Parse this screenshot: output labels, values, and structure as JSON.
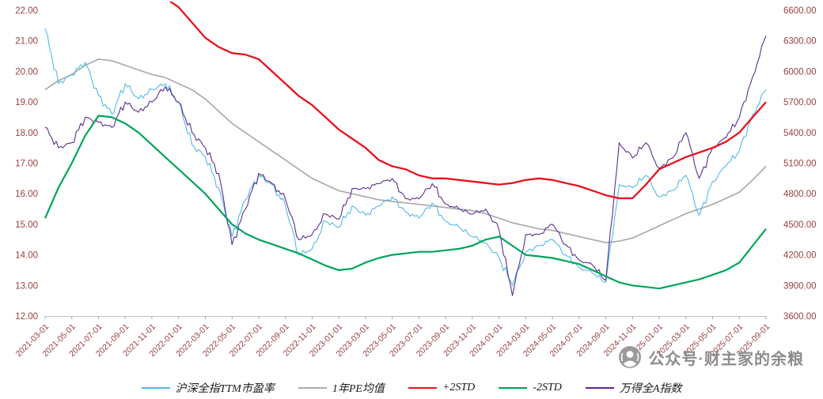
{
  "watermark": {
    "text": "公众号·财主家的余粮"
  },
  "colors": {
    "axis_text": "#9a4040",
    "axis_line": "#bfbfbf",
    "tick": "#a6a6a6"
  },
  "chart_data": {
    "type": "line",
    "title": "",
    "grid": false,
    "legend_position": "bottom",
    "x": [
      "2021-03",
      "2021-04",
      "2021-05",
      "2021-06",
      "2021-07",
      "2021-08",
      "2021-09",
      "2021-10",
      "2021-11",
      "2021-12",
      "2022-01",
      "2022-02",
      "2022-03",
      "2022-04",
      "2022-05",
      "2022-06",
      "2022-07",
      "2022-08",
      "2022-09",
      "2022-10",
      "2022-11",
      "2022-12",
      "2023-01",
      "2023-02",
      "2023-03",
      "2023-04",
      "2023-05",
      "2023-06",
      "2023-07",
      "2023-08",
      "2023-09",
      "2023-10",
      "2023-11",
      "2023-12",
      "2024-01",
      "2024-02",
      "2024-03",
      "2024-04",
      "2024-05",
      "2024-06",
      "2024-07",
      "2024-08",
      "2024-09",
      "2024-10",
      "2024-11",
      "2024-12",
      "2025-01",
      "2025-02",
      "2025-03",
      "2025-04",
      "2025-05",
      "2025-06",
      "2025-07",
      "2025-08",
      "2025-09"
    ],
    "x_tick_labels": [
      "2021-03-01",
      "2021-05-01",
      "2021-07-01",
      "2021-09-01",
      "2021-11-01",
      "2022-01-01",
      "2022-03-01",
      "2022-05-01",
      "2022-07-01",
      "2022-09-01",
      "2022-11-01",
      "2023-01-01",
      "2023-03-01",
      "2023-05-01",
      "2023-07-01",
      "2023-09-01",
      "2023-11-01",
      "2024-01-01",
      "2024-03-01",
      "2024-05-01",
      "2024-07-01",
      "2024-09-01",
      "2024-11-01",
      "2025-01-01",
      "2025-03-01",
      "2025-05-01",
      "2025-07-01",
      "2025-09-01"
    ],
    "left_axis": {
      "min": 12,
      "max": 22,
      "ticks": [
        "22.00",
        "21.00",
        "20.00",
        "19.00",
        "18.00",
        "17.00",
        "16.00",
        "15.00",
        "14.00",
        "13.00",
        "12.00"
      ]
    },
    "right_axis": {
      "min": 3600,
      "max": 6600,
      "ticks": [
        "6600.00",
        "6300.00",
        "6000.00",
        "5700.00",
        "5400.00",
        "5100.00",
        "4800.00",
        "4500.00",
        "4200.00",
        "3900.00",
        "3600.00"
      ]
    },
    "series": [
      {
        "name": "沪深全指TTM市盈率",
        "color": "#54B9E9",
        "axis": "left",
        "width": 1.1,
        "jitter": true,
        "values": [
          21.4,
          19.6,
          19.9,
          20.3,
          19.2,
          18.6,
          19.6,
          19.1,
          19.4,
          19.6,
          19.0,
          17.6,
          17.2,
          16.2,
          14.6,
          15.8,
          16.6,
          16.3,
          15.6,
          14.0,
          14.2,
          15.1,
          14.9,
          15.6,
          15.3,
          15.6,
          15.9,
          15.4,
          15.2,
          15.7,
          15.1,
          14.9,
          14.6,
          14.4,
          13.9,
          13.0,
          14.1,
          14.3,
          14.5,
          14.0,
          13.6,
          13.4,
          13.1,
          16.3,
          16.2,
          16.6,
          15.9,
          16.1,
          16.6,
          15.3,
          16.4,
          16.9,
          17.4,
          18.6,
          19.4
        ]
      },
      {
        "name": "1年PE均值",
        "color": "#ABABAB",
        "axis": "left",
        "width": 1.7,
        "jitter": false,
        "values": [
          19.4,
          19.7,
          19.9,
          20.2,
          20.4,
          20.35,
          20.2,
          20.05,
          19.9,
          19.8,
          19.6,
          19.4,
          19.1,
          18.7,
          18.3,
          18.0,
          17.7,
          17.4,
          17.1,
          16.8,
          16.5,
          16.3,
          16.1,
          16.0,
          15.9,
          15.8,
          15.75,
          15.7,
          15.65,
          15.6,
          15.55,
          15.5,
          15.45,
          15.35,
          15.2,
          15.05,
          14.95,
          14.85,
          14.8,
          14.7,
          14.6,
          14.5,
          14.4,
          14.45,
          14.55,
          14.75,
          14.95,
          15.15,
          15.35,
          15.5,
          15.65,
          15.85,
          16.05,
          16.45,
          16.9
        ]
      },
      {
        "name": "+2STD",
        "color": "#E8131D",
        "axis": "left",
        "width": 2.3,
        "jitter": false,
        "values": [
          23.8,
          23.8,
          23.7,
          23.6,
          23.4,
          23.2,
          23.0,
          22.8,
          22.6,
          22.4,
          22.1,
          21.6,
          21.1,
          20.8,
          20.6,
          20.55,
          20.4,
          20.0,
          19.6,
          19.2,
          18.9,
          18.5,
          18.1,
          17.8,
          17.5,
          17.1,
          16.9,
          16.8,
          16.6,
          16.5,
          16.5,
          16.45,
          16.4,
          16.35,
          16.3,
          16.35,
          16.45,
          16.5,
          16.45,
          16.35,
          16.25,
          16.1,
          15.95,
          15.85,
          15.85,
          16.3,
          16.8,
          17.0,
          17.2,
          17.35,
          17.5,
          17.7,
          18.0,
          18.5,
          19.0
        ]
      },
      {
        "name": "-2STD",
        "color": "#00A45A",
        "axis": "left",
        "width": 2.2,
        "jitter": false,
        "values": [
          15.2,
          16.2,
          17.0,
          17.9,
          18.55,
          18.5,
          18.3,
          18.0,
          17.6,
          17.2,
          16.8,
          16.4,
          16.0,
          15.5,
          15.0,
          14.7,
          14.5,
          14.35,
          14.2,
          14.05,
          13.85,
          13.65,
          13.5,
          13.55,
          13.75,
          13.9,
          14.0,
          14.05,
          14.1,
          14.1,
          14.15,
          14.2,
          14.3,
          14.5,
          14.6,
          14.3,
          14.0,
          13.95,
          13.9,
          13.8,
          13.7,
          13.5,
          13.3,
          13.1,
          13.0,
          12.95,
          12.9,
          13.0,
          13.1,
          13.2,
          13.35,
          13.5,
          13.75,
          14.3,
          14.85
        ]
      },
      {
        "name": "万得全A指数",
        "color": "#5B2E90",
        "axis": "right",
        "width": 1.1,
        "jitter": true,
        "values": [
          5450,
          5250,
          5300,
          5550,
          5500,
          5450,
          5700,
          5600,
          5700,
          5850,
          5700,
          5400,
          5250,
          5000,
          4300,
          4650,
          5000,
          4900,
          4750,
          4350,
          4400,
          4600,
          4550,
          4850,
          4850,
          4900,
          4950,
          4750,
          4750,
          4900,
          4700,
          4650,
          4600,
          4650,
          4450,
          3800,
          4400,
          4400,
          4500,
          4300,
          4150,
          4100,
          3950,
          5300,
          5150,
          5300,
          5050,
          5150,
          5400,
          4950,
          5250,
          5350,
          5550,
          5950,
          6350
        ]
      }
    ]
  }
}
